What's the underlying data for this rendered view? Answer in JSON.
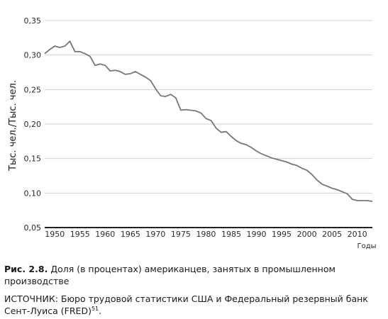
{
  "chart_data": {
    "type": "line",
    "ylabel": "Тыс. чел./Тыс. чел.",
    "xlabel": "Годы",
    "ylim": [
      0.05,
      0.35
    ],
    "xlim": [
      1948,
      2013
    ],
    "y_ticks": [
      "0,05",
      "0,10",
      "0,15",
      "0,20",
      "0,25",
      "0,30",
      "0,35"
    ],
    "x_ticks": [
      "1950",
      "1955",
      "1960",
      "1965",
      "1970",
      "1975",
      "1980",
      "1985",
      "1990",
      "1995",
      "2000",
      "2005",
      "2010"
    ],
    "grid": "horizontal",
    "series": [
      {
        "color": "#777777",
        "x": [
          1948,
          1949,
          1950,
          1951,
          1952,
          1953,
          1954,
          1955,
          1956,
          1957,
          1958,
          1959,
          1960,
          1961,
          1962,
          1963,
          1964,
          1965,
          1966,
          1967,
          1968,
          1969,
          1970,
          1971,
          1972,
          1973,
          1974,
          1975,
          1976,
          1977,
          1978,
          1979,
          1980,
          1981,
          1982,
          1983,
          1984,
          1985,
          1986,
          1987,
          1988,
          1989,
          1990,
          1991,
          1992,
          1993,
          1994,
          1995,
          1996,
          1997,
          1998,
          1999,
          2000,
          2001,
          2002,
          2003,
          2004,
          2005,
          2006,
          2007,
          2008,
          2009,
          2010,
          2011,
          2012,
          2013
        ],
        "y": [
          0.302,
          0.308,
          0.313,
          0.311,
          0.313,
          0.32,
          0.305,
          0.305,
          0.302,
          0.298,
          0.285,
          0.287,
          0.285,
          0.277,
          0.278,
          0.276,
          0.272,
          0.273,
          0.276,
          0.272,
          0.268,
          0.263,
          0.251,
          0.241,
          0.24,
          0.243,
          0.238,
          0.22,
          0.221,
          0.22,
          0.219,
          0.216,
          0.208,
          0.205,
          0.194,
          0.188,
          0.189,
          0.182,
          0.176,
          0.172,
          0.17,
          0.166,
          0.161,
          0.157,
          0.154,
          0.151,
          0.149,
          0.147,
          0.145,
          0.142,
          0.14,
          0.136,
          0.133,
          0.127,
          0.119,
          0.113,
          0.11,
          0.107,
          0.105,
          0.102,
          0.099,
          0.091,
          0.089,
          0.089,
          0.089,
          0.088
        ]
      }
    ]
  },
  "caption": {
    "label": "Рис. 2.8.",
    "text": "Доля (в процентах) американцев, занятых в промышленном производстве"
  },
  "source": {
    "text": "ИСТОЧНИК: Бюро трудовой статистики США и Федеральный резервный банк Сент-Луиса (FRED)",
    "note": "51"
  }
}
